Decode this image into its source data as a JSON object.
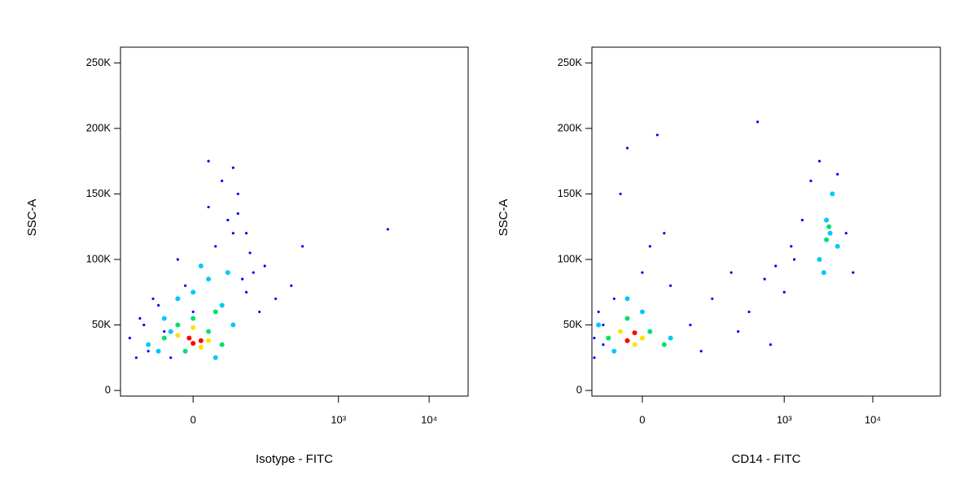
{
  "chart_data": [
    {
      "type": "scatter",
      "xscale": "biex",
      "xlabel": "Isotype - FITC",
      "ylabel": "SSC-A",
      "xlim": [
        -154,
        26900
      ],
      "ylim": [
        -4300,
        262000
      ],
      "xticks": [
        0,
        {
          "value": 1000,
          "label": "10³"
        },
        {
          "value": 10000,
          "label": "10⁴"
        }
      ],
      "yticks": [
        0,
        {
          "value": 50000,
          "label": "50K"
        },
        {
          "value": 100000,
          "label": "100K"
        },
        {
          "value": 150000,
          "label": "150K"
        },
        {
          "value": 200000,
          "label": "200K"
        },
        {
          "value": 250000,
          "label": "250K"
        }
      ],
      "series": [
        {
          "color": "#0000ff",
          "x": [
            -120,
            -90,
            -70,
            -50,
            -30,
            -10,
            10,
            30,
            50,
            70,
            90,
            110,
            -100,
            -60,
            -20,
            20,
            60,
            100,
            0,
            40,
            80,
            -40,
            130,
            60,
            20,
            70,
            90,
            -80,
            150,
            400,
            3500,
            300,
            200
          ],
          "values": [
            40000,
            55000,
            30000,
            65000,
            25000,
            80000,
            95000,
            110000,
            130000,
            150000,
            120000,
            90000,
            25000,
            70000,
            100000,
            140000,
            170000,
            105000,
            60000,
            160000,
            85000,
            45000,
            60000,
            120000,
            175000,
            135000,
            75000,
            50000,
            95000,
            110000,
            123000,
            80000,
            70000
          ]
        },
        {
          "color": "#00c8ff",
          "x": [
            -70,
            -40,
            -20,
            0,
            20,
            40,
            60,
            -50,
            10,
            50,
            30,
            -30
          ],
          "values": [
            35000,
            55000,
            70000,
            75000,
            85000,
            65000,
            50000,
            30000,
            95000,
            90000,
            25000,
            45000
          ]
        },
        {
          "color": "#00e070",
          "x": [
            -40,
            -20,
            0,
            20,
            40,
            -10,
            30
          ],
          "values": [
            40000,
            50000,
            55000,
            45000,
            35000,
            30000,
            60000
          ]
        },
        {
          "color": "#ffe000",
          "x": [
            -20,
            0,
            20,
            10
          ],
          "values": [
            42000,
            48000,
            38000,
            33000
          ]
        },
        {
          "color": "#ff0000",
          "x": [
            -5,
            10,
            0
          ],
          "values": [
            40000,
            38000,
            36000
          ]
        }
      ]
    },
    {
      "type": "scatter",
      "xscale": "biex",
      "xlabel": "CD14 - FITC",
      "ylabel": "SSC-A",
      "xlim": [
        -86,
        58000
      ],
      "ylim": [
        -4300,
        262000
      ],
      "xticks": [
        0,
        {
          "value": 1000,
          "label": "10³"
        },
        {
          "value": 10000,
          "label": "10⁴"
        }
      ],
      "yticks": [
        0,
        {
          "value": 50000,
          "label": "50K"
        },
        {
          "value": 100000,
          "label": "100K"
        },
        {
          "value": 150000,
          "label": "150K"
        },
        {
          "value": 200000,
          "label": "200K"
        },
        {
          "value": 250000,
          "label": "250K"
        }
      ],
      "series": [
        {
          "color": "#0000ff",
          "x": [
            -80,
            -70,
            -80,
            -40,
            0,
            40,
            80,
            110,
            -60,
            -60,
            30,
            150,
            250,
            400,
            600,
            800,
            1000,
            1300,
            1600,
            2000,
            5000,
            6000,
            2500,
            4000,
            -20,
            20,
            300,
            700,
            1200,
            500,
            -30,
            10
          ],
          "values": [
            40000,
            60000,
            25000,
            70000,
            90000,
            80000,
            50000,
            30000,
            50000,
            35000,
            120000,
            70000,
            90000,
            60000,
            85000,
            95000,
            75000,
            100000,
            130000,
            160000,
            120000,
            90000,
            175000,
            165000,
            185000,
            195000,
            45000,
            35000,
            110000,
            205000,
            150000,
            110000
          ]
        },
        {
          "color": "#00c8ff",
          "x": [
            -70,
            -40,
            0,
            40,
            -20,
            2500,
            3000,
            3500,
            4000,
            2800,
            3300
          ],
          "values": [
            50000,
            30000,
            60000,
            40000,
            70000,
            100000,
            130000,
            150000,
            110000,
            90000,
            120000
          ]
        },
        {
          "color": "#00e070",
          "x": [
            -50,
            -20,
            10,
            30,
            3000,
            3200
          ],
          "values": [
            40000,
            55000,
            45000,
            35000,
            115000,
            125000
          ]
        },
        {
          "color": "#ffe000",
          "x": [
            -30,
            0,
            -10
          ],
          "values": [
            45000,
            40000,
            35000
          ]
        },
        {
          "color": "#ff0000",
          "x": [
            -20,
            -10
          ],
          "values": [
            38000,
            44000
          ]
        }
      ]
    }
  ]
}
